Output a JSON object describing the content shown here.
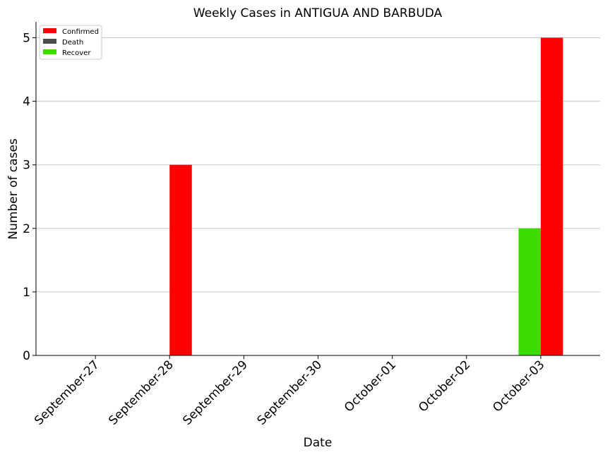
{
  "chart_data": {
    "type": "bar",
    "title": "Weekly Cases in ANTIGUA AND BARBUDA",
    "xlabel": "Date",
    "ylabel": "Number of cases",
    "categories": [
      "September-27",
      "September-28",
      "September-29",
      "September-30",
      "October-01",
      "October-02",
      "October-03"
    ],
    "series": [
      {
        "name": "Recover",
        "color": "#3adb00",
        "values": [
          0,
          0,
          0,
          0,
          0,
          0,
          2
        ]
      },
      {
        "name": "Confirmed",
        "color": "#ff0000",
        "values": [
          0,
          3,
          0,
          0,
          0,
          0,
          5
        ]
      },
      {
        "name": "Death",
        "color": "#4d4d4d",
        "values": [
          0,
          0,
          0,
          0,
          0,
          0,
          0
        ]
      }
    ],
    "legend": [
      "Confirmed",
      "Death",
      "Recover"
    ],
    "legend_position": "upper-left",
    "ylim": [
      0,
      5.25
    ],
    "yticks": [
      0,
      1,
      2,
      3,
      4,
      5
    ],
    "grid": "horizontal"
  }
}
